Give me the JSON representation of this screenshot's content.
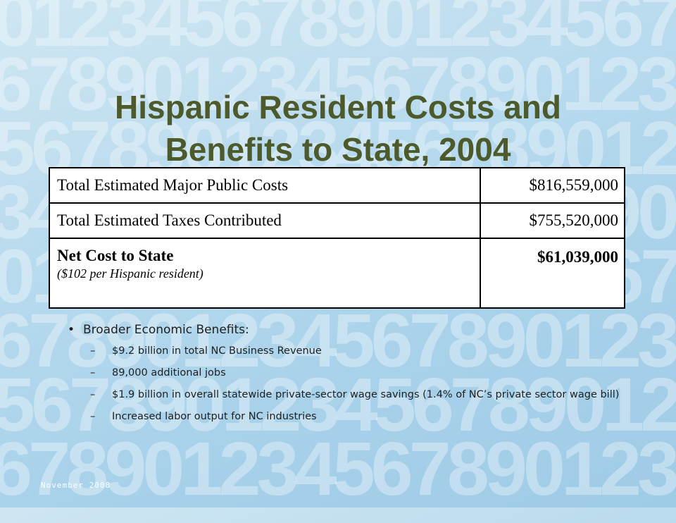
{
  "background": {
    "digit_rows": [
      "012345678901234567890123",
      "678901234567890123456789",
      "567890123456789012345678",
      "345678901234567890123456",
      "012345678901234567890123",
      "678901234567890123456789",
      "567890123456789012345678",
      "678901234567890123456789"
    ],
    "color": "#a9d2ea"
  },
  "title": {
    "line1": "Hispanic Resident Costs and",
    "line2": "Benefits to State, 2004",
    "color": "#4d5a2c"
  },
  "table": {
    "rows": [
      {
        "label": "Total Estimated Major Public Costs",
        "amount": "$816,559,000"
      },
      {
        "label": "Total Estimated Taxes Contributed",
        "amount": "$755,520,000"
      },
      {
        "label": "Net Cost to State",
        "sublabel": "($102 per Hispanic resident)",
        "amount": "$61,039,000"
      }
    ]
  },
  "benefits": {
    "bullet_glyph": "•",
    "dash_glyph": "–",
    "heading": "Broader Economic Benefits:",
    "items": [
      "$9.2 billion in total NC Business Revenue",
      "89,000 additional jobs",
      "$1.9 billion in overall statewide private-sector wage savings (1.4% of NC’s private sector wage bill)",
      "Increased labor output for NC industries"
    ]
  },
  "footer": {
    "date": "November 2008"
  }
}
